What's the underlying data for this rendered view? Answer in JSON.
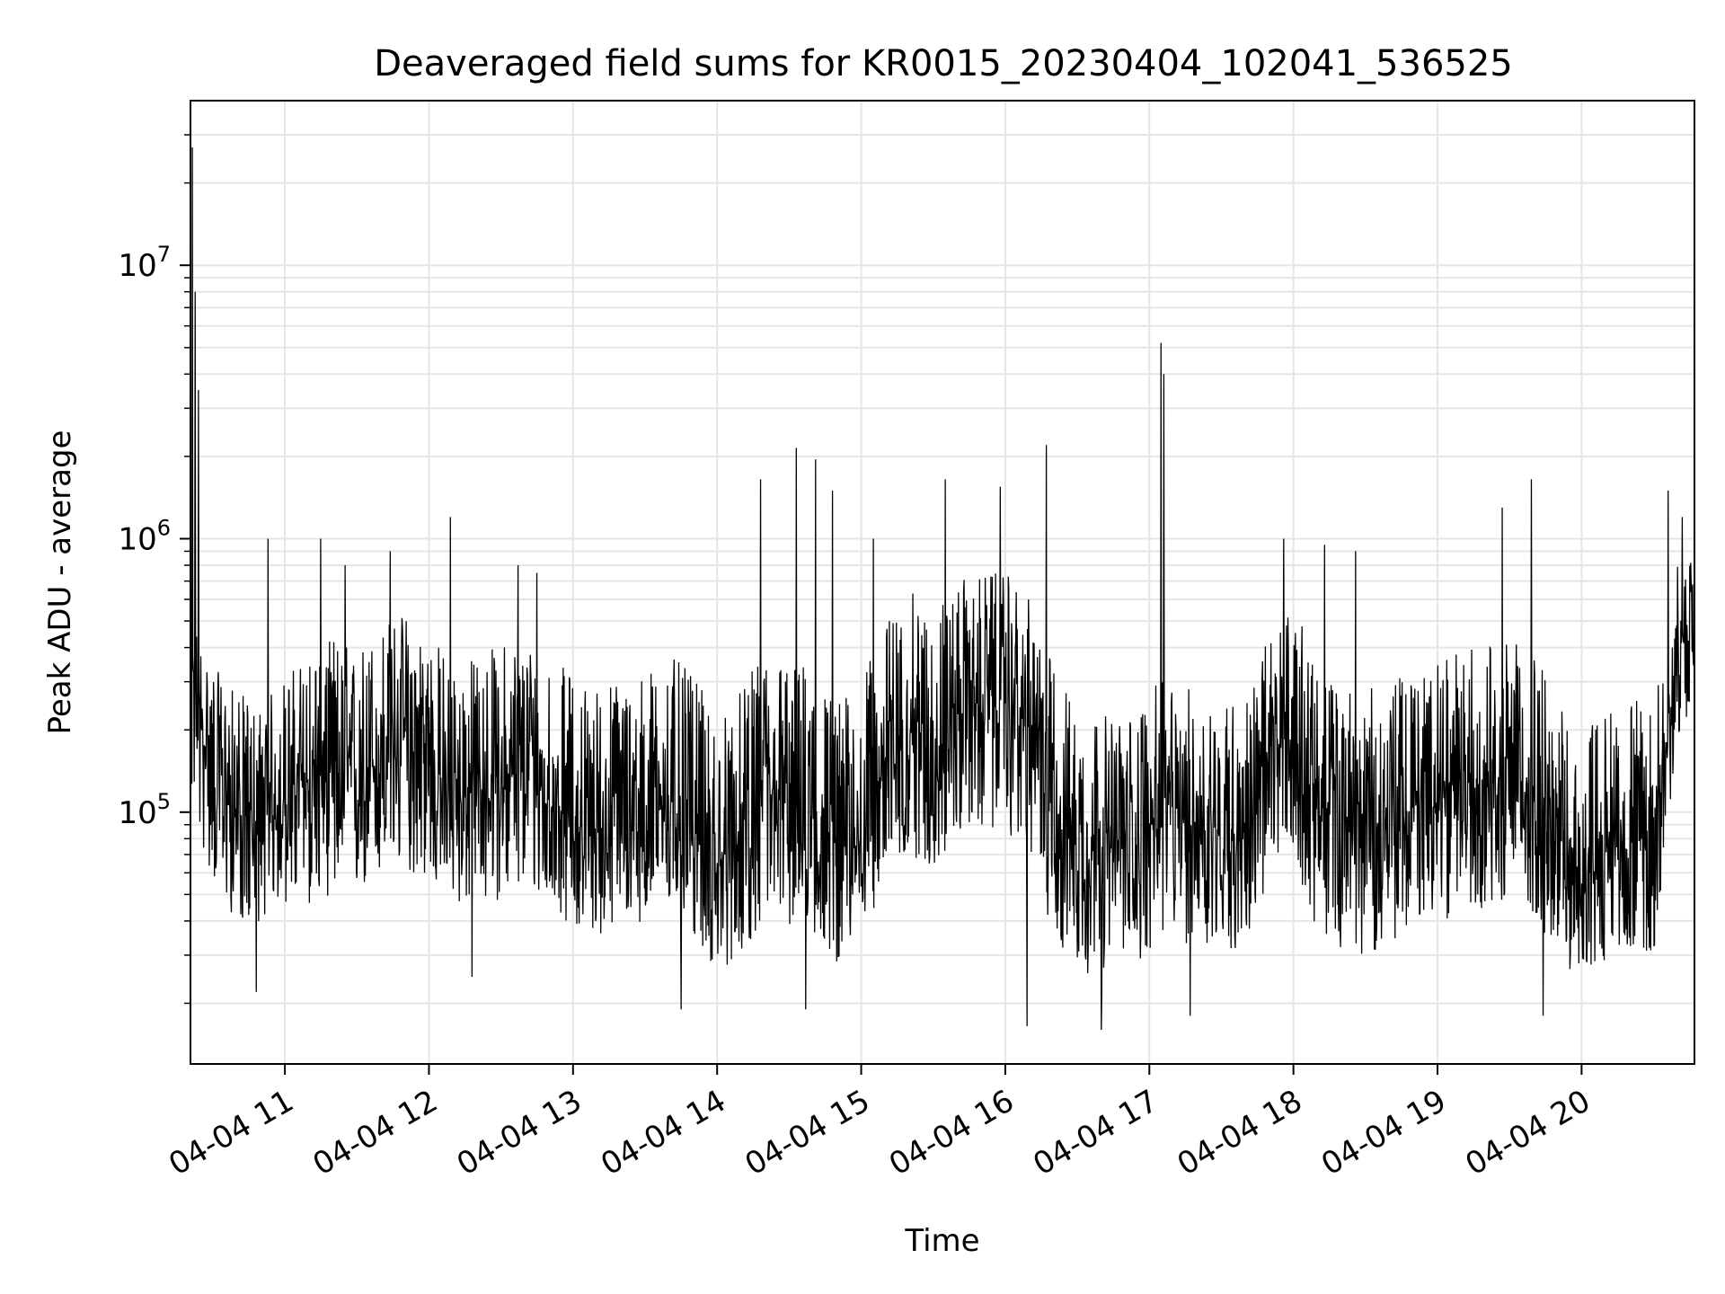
{
  "chart_data": {
    "type": "line",
    "title": "Deaveraged field sums for KR0015_20230404_102041_536525",
    "xlabel": "Time",
    "ylabel": "Peak ADU - average",
    "y_scale": "log",
    "ylim": [
      12000,
      40000000
    ],
    "xlim": [
      "2023-04-04 10:20:41",
      "2023-04-04 20:47:00"
    ],
    "x_ticks": [
      {
        "value": "2023-04-04 11:00",
        "label": "04-04 11"
      },
      {
        "value": "2023-04-04 12:00",
        "label": "04-04 12"
      },
      {
        "value": "2023-04-04 13:00",
        "label": "04-04 13"
      },
      {
        "value": "2023-04-04 14:00",
        "label": "04-04 14"
      },
      {
        "value": "2023-04-04 15:00",
        "label": "04-04 15"
      },
      {
        "value": "2023-04-04 16:00",
        "label": "04-04 16"
      },
      {
        "value": "2023-04-04 17:00",
        "label": "04-04 17"
      },
      {
        "value": "2023-04-04 18:00",
        "label": "04-04 18"
      },
      {
        "value": "2023-04-04 19:00",
        "label": "04-04 19"
      },
      {
        "value": "2023-04-04 20:00",
        "label": "04-04 20"
      }
    ],
    "y_ticks": [
      {
        "value": 100000,
        "base": "10",
        "exp": "5"
      },
      {
        "value": 1000000,
        "base": "10",
        "exp": "6"
      },
      {
        "value": 10000000,
        "base": "10",
        "exp": "7"
      }
    ],
    "grid": true,
    "line_color": "#000000",
    "grid_color": "#e5e5e5",
    "series": [
      {
        "x": [
          "2023-04-04 10:20:41",
          "2023-04-04 10:21",
          "2023-04-04 10:23",
          "2023-04-04 10:26",
          "2023-04-04 10:30",
          "2023-04-04 10:35",
          "2023-04-04 10:40",
          "2023-04-04 10:45",
          "2023-04-04 10:50",
          "2023-04-04 10:55",
          "2023-04-04 11:00",
          "2023-04-04 11:10",
          "2023-04-04 11:20",
          "2023-04-04 11:30",
          "2023-04-04 11:40",
          "2023-04-04 11:50",
          "2023-04-04 12:00",
          "2023-04-04 12:10",
          "2023-04-04 12:20",
          "2023-04-04 12:30",
          "2023-04-04 12:40",
          "2023-04-04 12:50",
          "2023-04-04 13:00",
          "2023-04-04 13:10",
          "2023-04-04 13:20",
          "2023-04-04 13:30",
          "2023-04-04 13:40",
          "2023-04-04 13:50",
          "2023-04-04 14:00",
          "2023-04-04 14:10",
          "2023-04-04 14:20",
          "2023-04-04 14:30",
          "2023-04-04 14:40",
          "2023-04-04 14:50",
          "2023-04-04 15:00",
          "2023-04-04 15:10",
          "2023-04-04 15:20",
          "2023-04-04 15:30",
          "2023-04-04 15:40",
          "2023-04-04 15:50",
          "2023-04-04 16:00",
          "2023-04-04 16:10",
          "2023-04-04 16:20",
          "2023-04-04 16:30",
          "2023-04-04 16:40",
          "2023-04-04 16:50",
          "2023-04-04 17:00",
          "2023-04-04 17:05",
          "2023-04-04 17:10",
          "2023-04-04 17:20",
          "2023-04-04 17:30",
          "2023-04-04 17:40",
          "2023-04-04 17:50",
          "2023-04-04 18:00",
          "2023-04-04 18:10",
          "2023-04-04 18:20",
          "2023-04-04 18:30",
          "2023-04-04 18:40",
          "2023-04-04 18:50",
          "2023-04-04 19:00",
          "2023-04-04 19:10",
          "2023-04-04 19:20",
          "2023-04-04 19:30",
          "2023-04-04 19:40",
          "2023-04-04 19:50",
          "2023-04-04 20:00",
          "2023-04-04 20:10",
          "2023-04-04 20:20",
          "2023-04-04 20:30",
          "2023-04-04 20:40",
          "2023-04-04 20:47"
        ],
        "center": [
          300000,
          350000,
          250000,
          180000,
          150000,
          120000,
          100000,
          90000,
          85000,
          95000,
          110000,
          130000,
          140000,
          120000,
          160000,
          180000,
          150000,
          110000,
          120000,
          130000,
          140000,
          110000,
          90000,
          85000,
          95000,
          100000,
          110000,
          90000,
          60000,
          80000,
          110000,
          100000,
          90000,
          70000,
          80000,
          150000,
          200000,
          160000,
          230000,
          250000,
          250000,
          200000,
          110000,
          80000,
          75000,
          70000,
          90000,
          100000,
          95000,
          90000,
          85000,
          80000,
          150000,
          200000,
          100000,
          90000,
          85000,
          90000,
          100000,
          110000,
          120000,
          130000,
          130000,
          120000,
          60000,
          55000,
          70000,
          80000,
          75000,
          400000,
          450000
        ],
        "low": [
          120000,
          110000,
          90000,
          70000,
          55000,
          45000,
          40000,
          38000,
          40000,
          45000,
          45000,
          45000,
          50000,
          48000,
          55000,
          60000,
          55000,
          45000,
          45000,
          48000,
          50000,
          45000,
          38000,
          35000,
          38000,
          40000,
          42000,
          35000,
          25000,
          30000,
          40000,
          38000,
          35000,
          28000,
          35000,
          55000,
          70000,
          60000,
          80000,
          85000,
          85000,
          70000,
          35000,
          25000,
          22000,
          25000,
          30000,
          35000,
          35000,
          30000,
          32000,
          30000,
          55000,
          70000,
          35000,
          32000,
          30000,
          32000,
          38000,
          40000,
          42000,
          45000,
          45000,
          42000,
          28000,
          25000,
          28000,
          32000,
          30000,
          180000,
          250000
        ],
        "high": [
          600000,
          700000,
          500000,
          400000,
          350000,
          300000,
          280000,
          260000,
          250000,
          280000,
          320000,
          400000,
          450000,
          400000,
          500000,
          550000,
          480000,
          350000,
          380000,
          420000,
          450000,
          380000,
          320000,
          300000,
          320000,
          330000,
          380000,
          320000,
          220000,
          280000,
          400000,
          380000,
          350000,
          260000,
          300000,
          500000,
          650000,
          550000,
          700000,
          750000,
          750000,
          600000,
          350000,
          250000,
          230000,
          220000,
          280000,
          300000,
          300000,
          280000,
          270000,
          260000,
          450000,
          600000,
          320000,
          300000,
          280000,
          300000,
          330000,
          350000,
          400000,
          420000,
          420000,
          400000,
          250000,
          200000,
          240000,
          260000,
          250000,
          800000,
          850000
        ]
      }
    ],
    "spikes": [
      {
        "x": "2023-04-04 10:21:30",
        "y": 27000000
      },
      {
        "x": "2023-04-04 10:22:30",
        "y": 8000000
      },
      {
        "x": "2023-04-04 10:24:00",
        "y": 3500000
      },
      {
        "x": "2023-04-04 10:53",
        "y": 1000000
      },
      {
        "x": "2023-04-04 11:15",
        "y": 1000000
      },
      {
        "x": "2023-04-04 11:25",
        "y": 800000
      },
      {
        "x": "2023-04-04 11:44",
        "y": 900000
      },
      {
        "x": "2023-04-04 12:09",
        "y": 1200000
      },
      {
        "x": "2023-04-04 12:37",
        "y": 800000
      },
      {
        "x": "2023-04-04 12:45",
        "y": 750000
      },
      {
        "x": "2023-04-04 14:18",
        "y": 1650000
      },
      {
        "x": "2023-04-04 14:33",
        "y": 2150000
      },
      {
        "x": "2023-04-04 14:41",
        "y": 1950000
      },
      {
        "x": "2023-04-04 14:48",
        "y": 1500000
      },
      {
        "x": "2023-04-04 15:05",
        "y": 1000000
      },
      {
        "x": "2023-04-04 15:35",
        "y": 1650000
      },
      {
        "x": "2023-04-04 15:58",
        "y": 1550000
      },
      {
        "x": "2023-04-04 16:17",
        "y": 2200000
      },
      {
        "x": "2023-04-04 17:05",
        "y": 5200000
      },
      {
        "x": "2023-04-04 17:06",
        "y": 4000000
      },
      {
        "x": "2023-04-04 17:56",
        "y": 1000000
      },
      {
        "x": "2023-04-04 18:13",
        "y": 950000
      },
      {
        "x": "2023-04-04 18:26",
        "y": 900000
      },
      {
        "x": "2023-04-04 19:27",
        "y": 1300000
      },
      {
        "x": "2023-04-04 19:39",
        "y": 1650000
      },
      {
        "x": "2023-04-04 20:36",
        "y": 1500000
      },
      {
        "x": "2023-04-04 20:42",
        "y": 1200000
      }
    ],
    "dips": [
      {
        "x": "2023-04-04 10:48",
        "y": 22000
      },
      {
        "x": "2023-04-04 12:18",
        "y": 25000
      },
      {
        "x": "2023-04-04 13:45",
        "y": 19000
      },
      {
        "x": "2023-04-04 14:37",
        "y": 19000
      },
      {
        "x": "2023-04-04 16:09",
        "y": 16500
      },
      {
        "x": "2023-04-04 16:40",
        "y": 16000
      },
      {
        "x": "2023-04-04 17:17",
        "y": 18000
      },
      {
        "x": "2023-04-04 19:44",
        "y": 18000
      }
    ]
  }
}
